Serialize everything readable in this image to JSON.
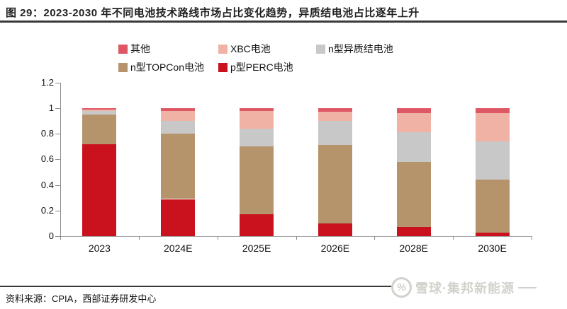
{
  "page": {
    "title": "图 29：2023-2030 年不同电池技术路线市场占比变化趋势，异质结电池占比逐年上升"
  },
  "source_note": "资料来源：CPIA，西部证券研发中心",
  "watermark": {
    "icon": "xueqiu-logo-icon",
    "icon_glyph": "%",
    "text": "雪球·集邦新能源",
    "color": "#d2d2cc"
  },
  "chart_data": {
    "type": "bar",
    "stacked": true,
    "title": "",
    "xlabel": "",
    "ylabel": "",
    "categories": [
      "2023",
      "2024E",
      "2025E",
      "2026E",
      "2028E",
      "2030E"
    ],
    "series": [
      {
        "name": "p型PERC电池",
        "color": "#c9121e",
        "values": [
          0.72,
          0.29,
          0.17,
          0.1,
          0.07,
          0.03
        ]
      },
      {
        "name": "n型TOPCon电池",
        "color": "#b5946c",
        "values": [
          0.23,
          0.51,
          0.53,
          0.61,
          0.51,
          0.41
        ]
      },
      {
        "name": "n型异质结电池",
        "color": "#c8c8c8",
        "values": [
          0.03,
          0.1,
          0.14,
          0.19,
          0.23,
          0.3
        ]
      },
      {
        "name": "XBC电池",
        "color": "#f0b2a4",
        "values": [
          0.01,
          0.08,
          0.14,
          0.07,
          0.15,
          0.22
        ]
      },
      {
        "name": "其他",
        "color": "#dd5765",
        "values": [
          0.01,
          0.02,
          0.02,
          0.03,
          0.04,
          0.04
        ]
      }
    ],
    "ylim": [
      0,
      1.2
    ],
    "ytick_labels": [
      "0",
      "0.2",
      "0.4",
      "0.6",
      "0.8",
      "1",
      "1.2"
    ],
    "grid": false,
    "legend_position": "top",
    "legend_rows": [
      [
        "其他",
        "XBC电池",
        "n型异质结电池"
      ],
      [
        "n型TOPCon电池",
        "p型PERC电池"
      ]
    ],
    "axis_color": "#8c8c8c"
  }
}
